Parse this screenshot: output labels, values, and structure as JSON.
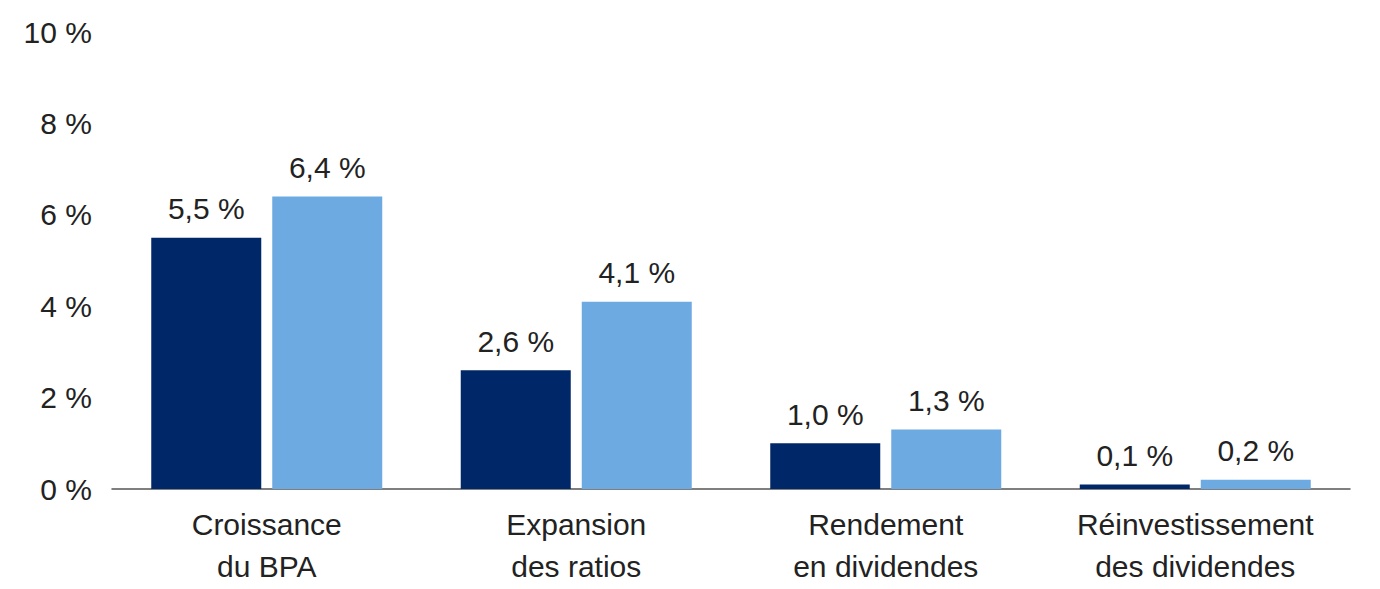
{
  "chart_data": {
    "type": "bar",
    "categories": [
      "Croissance\ndu BPA",
      "Expansion\ndes ratios",
      "Rendement\nen dividendes",
      "Réinvestissement\ndes dividendes"
    ],
    "series": [
      {
        "color": "#002768",
        "values": [
          5.5,
          2.6,
          1.0,
          0.1
        ],
        "value_labels": [
          "5,5 %",
          "2,6 %",
          "1,0 %",
          "0,1 %"
        ]
      },
      {
        "color": "#6DAAE2",
        "values": [
          6.4,
          4.1,
          1.3,
          0.2
        ],
        "value_labels": [
          "6,4 %",
          "4,1 %",
          "1,3 %",
          "0,2 %"
        ]
      }
    ],
    "ylim": [
      0,
      10
    ],
    "yticks": [
      {
        "value": 0,
        "label": "0 %"
      },
      {
        "value": 2,
        "label": "2 %"
      },
      {
        "value": 4,
        "label": "4 %"
      },
      {
        "value": 6,
        "label": "6 %"
      },
      {
        "value": 8,
        "label": "8 %"
      },
      {
        "value": 10,
        "label": "10 %"
      }
    ],
    "grid": false,
    "data_labels": true
  }
}
